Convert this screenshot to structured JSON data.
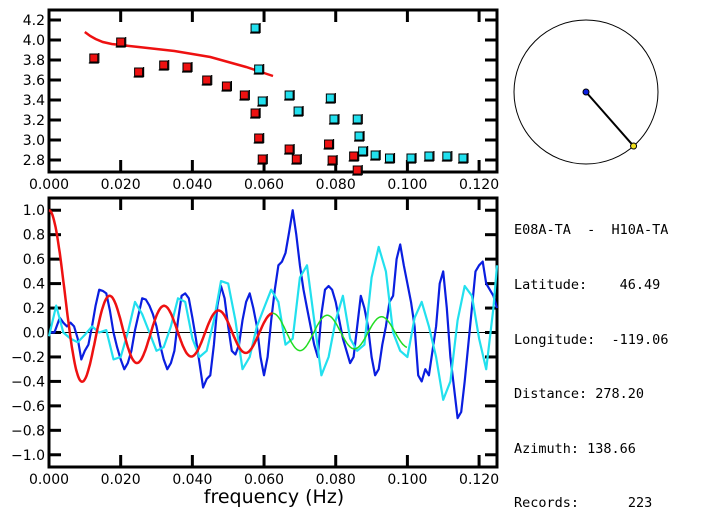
{
  "station_pair": "E08A-TA  -  H10A-TA",
  "info": [
    {
      "label": "Latitude:",
      "value": "46.49",
      "pad": "    "
    },
    {
      "label": "Longitude:",
      "value": "-119.06",
      "pad": "  "
    },
    {
      "label": "Distance:",
      "value": "278.20",
      "pad": " "
    },
    {
      "label": "Azimuth:",
      "value": "138.66",
      "pad": " "
    },
    {
      "label": "Records:",
      "value": "223",
      "pad": "      "
    }
  ],
  "colors": {
    "model_red": "#ee1111",
    "measured_blue": "#0a1ee0",
    "measured_cyan": "#22e0ee",
    "fit_green": "#22dd22",
    "axis": "#000000",
    "station_a": "#0a1ee0",
    "station_b": "#f0e020"
  },
  "azimuth_deg": 138.66,
  "chart_data": [
    {
      "type": "scatter",
      "title": "",
      "xlabel": "",
      "ylabel": "",
      "xlim": [
        0.0,
        0.125
      ],
      "ylim": [
        2.68,
        4.3
      ],
      "xticks": [
        "0.000",
        "0.020",
        "0.040",
        "0.060",
        "0.080",
        "0.100",
        "0.120"
      ],
      "xtick_values": [
        0.0,
        0.02,
        0.04,
        0.06,
        0.08,
        0.1,
        0.12
      ],
      "yticks": [
        "4.2",
        "4.0",
        "3.8",
        "3.6",
        "3.4",
        "3.2",
        "3.0",
        "2.8"
      ],
      "ytick_values": [
        4.2,
        4.0,
        3.8,
        3.6,
        3.4,
        3.2,
        3.0,
        2.8
      ],
      "series": [
        {
          "name": "model-dispersion-curve",
          "kind": "line",
          "color": "#ee1111",
          "x": [
            0.01,
            0.0115,
            0.013,
            0.015,
            0.0175,
            0.02,
            0.025,
            0.03,
            0.035,
            0.04,
            0.045,
            0.05,
            0.055,
            0.06,
            0.0625
          ],
          "y": [
            4.08,
            4.04,
            4.01,
            3.98,
            3.96,
            3.95,
            3.93,
            3.91,
            3.89,
            3.86,
            3.83,
            3.78,
            3.73,
            3.67,
            3.64
          ]
        },
        {
          "name": "red-measurements",
          "kind": "points",
          "color": "#ee1111",
          "x": [
            0.0125,
            0.02,
            0.025,
            0.032,
            0.0385,
            0.044,
            0.0495,
            0.0545,
            0.0575,
            0.0585,
            0.0595,
            0.067,
            0.069,
            0.078,
            0.079,
            0.085,
            0.086
          ],
          "y": [
            3.82,
            3.98,
            3.68,
            3.75,
            3.73,
            3.6,
            3.54,
            3.45,
            3.27,
            3.02,
            2.81,
            2.91,
            2.81,
            2.96,
            2.8,
            2.84,
            2.7
          ]
        },
        {
          "name": "cyan-measurements",
          "kind": "points",
          "color": "#22e0ee",
          "x": [
            0.0575,
            0.0585,
            0.0595,
            0.067,
            0.0695,
            0.0785,
            0.0795,
            0.086,
            0.0865,
            0.0875,
            0.091,
            0.095,
            0.101,
            0.106,
            0.111,
            0.1155
          ],
          "y": [
            4.12,
            3.71,
            3.39,
            3.45,
            3.29,
            3.42,
            3.21,
            3.21,
            3.04,
            2.89,
            2.85,
            2.82,
            2.82,
            2.84,
            2.84,
            2.82
          ]
        }
      ]
    },
    {
      "type": "line",
      "title": "",
      "xlabel": "frequency (Hz)",
      "ylabel": "",
      "xlim": [
        0.0,
        0.125
      ],
      "ylim": [
        -1.1,
        1.1
      ],
      "xticks": [
        "0.000",
        "0.020",
        "0.040",
        "0.060",
        "0.080",
        "0.100",
        "0.120"
      ],
      "xtick_values": [
        0.0,
        0.02,
        0.04,
        0.06,
        0.08,
        0.1,
        0.12
      ],
      "yticks": [
        "1.0",
        "0.8",
        "0.6",
        "0.4",
        "0.2",
        "0.0",
        "-0.2",
        "-0.4",
        "-0.6",
        "-0.8",
        "-1.0"
      ],
      "ytick_values": [
        1.0,
        0.8,
        0.6,
        0.4,
        0.2,
        0.0,
        -0.2,
        -0.4,
        -0.6,
        -0.8,
        -1.0
      ],
      "zero_line": true,
      "series": [
        {
          "name": "measured-real (blue)",
          "color": "#0a1ee0",
          "x": [
            0.0,
            0.0015,
            0.003,
            0.004,
            0.005,
            0.006,
            0.007,
            0.008,
            0.009,
            0.01,
            0.011,
            0.012,
            0.013,
            0.014,
            0.015,
            0.016,
            0.017,
            0.018,
            0.019,
            0.02,
            0.021,
            0.022,
            0.023,
            0.024,
            0.025,
            0.026,
            0.027,
            0.028,
            0.029,
            0.03,
            0.031,
            0.032,
            0.033,
            0.034,
            0.035,
            0.036,
            0.037,
            0.038,
            0.039,
            0.04,
            0.041,
            0.042,
            0.043,
            0.044,
            0.045,
            0.046,
            0.047,
            0.048,
            0.049,
            0.05,
            0.051,
            0.052,
            0.053,
            0.054,
            0.055,
            0.056,
            0.057,
            0.058,
            0.059,
            0.06,
            0.061,
            0.062,
            0.063,
            0.064,
            0.065,
            0.066,
            0.067,
            0.068,
            0.069,
            0.07,
            0.071,
            0.072,
            0.073,
            0.074,
            0.075,
            0.076,
            0.077,
            0.078,
            0.079,
            0.08,
            0.081,
            0.082,
            0.083,
            0.084,
            0.085,
            0.086,
            0.087,
            0.088,
            0.089,
            0.09,
            0.091,
            0.092,
            0.093,
            0.094,
            0.095,
            0.096,
            0.097,
            0.098,
            0.099,
            0.1,
            0.101,
            0.102,
            0.103,
            0.104,
            0.105,
            0.106,
            0.107,
            0.108,
            0.109,
            0.11,
            0.111,
            0.112,
            0.113,
            0.114,
            0.115,
            0.116,
            0.117,
            0.118,
            0.119,
            0.12,
            0.121,
            0.122,
            0.123,
            0.124,
            0.125
          ],
          "y": [
            0.0,
            0.0,
            0.12,
            0.08,
            0.05,
            0.08,
            0.05,
            -0.05,
            -0.22,
            -0.15,
            -0.1,
            0.05,
            0.22,
            0.35,
            0.34,
            0.32,
            0.18,
            0.0,
            -0.12,
            -0.22,
            -0.3,
            -0.25,
            -0.15,
            0.02,
            0.15,
            0.28,
            0.27,
            0.22,
            0.15,
            0.05,
            -0.1,
            -0.22,
            -0.3,
            -0.25,
            -0.15,
            0.1,
            0.3,
            0.32,
            0.28,
            0.12,
            -0.05,
            -0.25,
            -0.45,
            -0.38,
            -0.35,
            -0.1,
            0.22,
            0.38,
            0.28,
            0.05,
            -0.15,
            -0.18,
            -0.1,
            0.1,
            0.25,
            0.32,
            0.2,
            0.05,
            -0.2,
            -0.35,
            -0.2,
            0.1,
            0.35,
            0.55,
            0.58,
            0.65,
            0.82,
            1.0,
            0.8,
            0.55,
            0.35,
            0.2,
            0.05,
            -0.1,
            -0.2,
            0.15,
            0.35,
            0.38,
            0.35,
            0.25,
            0.1,
            -0.05,
            -0.15,
            -0.25,
            -0.2,
            0.05,
            0.3,
            0.2,
            0.05,
            -0.2,
            -0.35,
            -0.3,
            -0.1,
            0.05,
            0.25,
            0.3,
            0.6,
            0.72,
            0.55,
            0.4,
            0.25,
            0.05,
            -0.35,
            -0.4,
            -0.3,
            -0.35,
            -0.15,
            0.05,
            0.4,
            0.5,
            0.2,
            -0.2,
            -0.45,
            -0.7,
            -0.65,
            -0.4,
            -0.1,
            0.2,
            0.5,
            0.55,
            0.58,
            0.4,
            0.35,
            0.3,
            0.2
          ],
          "note": "approximate trace read from plot"
        },
        {
          "name": "measured-imag (cyan)",
          "color": "#22e0ee",
          "x": [
            0.0,
            0.002,
            0.004,
            0.006,
            0.008,
            0.01,
            0.012,
            0.014,
            0.016,
            0.018,
            0.02,
            0.022,
            0.024,
            0.026,
            0.028,
            0.03,
            0.032,
            0.034,
            0.036,
            0.038,
            0.04,
            0.042,
            0.044,
            0.046,
            0.048,
            0.05,
            0.052,
            0.054,
            0.056,
            0.058,
            0.06,
            0.062,
            0.064,
            0.066,
            0.068,
            0.07,
            0.072,
            0.074,
            0.076,
            0.078,
            0.08,
            0.082,
            0.084,
            0.086,
            0.088,
            0.09,
            0.092,
            0.094,
            0.096,
            0.098,
            0.1,
            0.102,
            0.104,
            0.106,
            0.108,
            0.11,
            0.112,
            0.114,
            0.116,
            0.118,
            0.12,
            0.122,
            0.124,
            0.125
          ],
          "y": [
            -0.03,
            0.22,
            0.0,
            -0.05,
            -0.08,
            -0.02,
            0.05,
            0.0,
            0.02,
            -0.22,
            -0.2,
            0.0,
            0.25,
            0.15,
            0.0,
            -0.15,
            -0.12,
            0.05,
            0.28,
            0.25,
            -0.05,
            -0.2,
            -0.15,
            0.1,
            0.42,
            0.4,
            0.1,
            -0.3,
            -0.2,
            0.05,
            0.2,
            0.35,
            0.25,
            -0.1,
            -0.05,
            0.45,
            0.55,
            0.1,
            -0.35,
            -0.2,
            0.1,
            0.3,
            -0.05,
            -0.15,
            -0.1,
            0.45,
            0.7,
            0.5,
            0.0,
            -0.15,
            -0.2,
            0.12,
            0.25,
            0.05,
            -0.2,
            -0.55,
            -0.4,
            0.1,
            0.38,
            0.3,
            -0.05,
            -0.3,
            0.2,
            0.55
          ],
          "note": "approximate trace read from plot"
        },
        {
          "name": "model-real (red)",
          "color": "#ee1111",
          "x_start": 0.0,
          "x_end": 0.0625
        },
        {
          "name": "model-fit (green)",
          "color": "#22dd22",
          "x_start": 0.0085,
          "x_end": 0.1
        }
      ]
    }
  ],
  "axes_labels": {
    "bottom_xlabel": "frequency (Hz)"
  }
}
